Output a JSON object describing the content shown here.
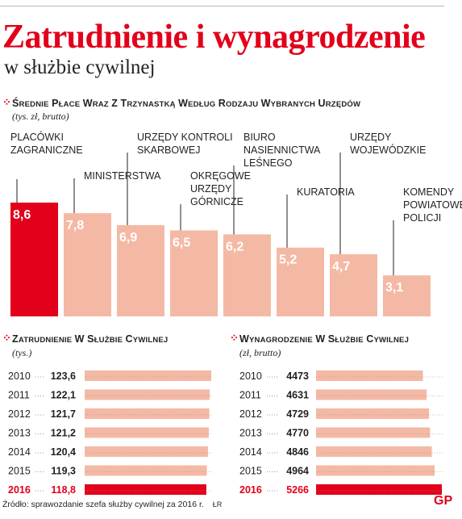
{
  "title": "Zatrudnienie i wynagrodzenie",
  "subtitle": "w służbie cywilnej",
  "colors": {
    "accent": "#e2001a",
    "bar": "#f4b9a4",
    "dots": "#999999"
  },
  "source": "Źródło: sprawozdanie szefa służby cywilnej za 2016 r.",
  "author_initials": "ŁR",
  "logo": "GP",
  "chart_data": [
    {
      "type": "bar",
      "title": "Średnie płace wraz z trzynastką według rodzaju wybranych urzędów",
      "subtitle": "(tys. zł, brutto)",
      "categories": [
        [
          "PLACÓWKI",
          "ZAGRANICZNE"
        ],
        [
          "MINISTERSTWA"
        ],
        [
          "URZĘDY KONTROLI",
          "SKARBOWEJ"
        ],
        [
          "OKRĘGOWE",
          "URZĘDY",
          "GÓRNICZE"
        ],
        [
          "BIURO",
          "NASIENNICTWA",
          "LEŚNEGO"
        ],
        [
          "KURATORIA"
        ],
        [
          "URZĘDY",
          "WOJEWÓDZKIE"
        ],
        [
          "KOMENDY",
          "POWIATOWE",
          "POLICJI"
        ]
      ],
      "values": [
        8.6,
        7.8,
        6.9,
        6.5,
        6.2,
        5.2,
        4.7,
        3.1
      ],
      "value_labels": [
        "8,6",
        "7,8",
        "6,9",
        "6,5",
        "6,2",
        "5,2",
        "4,7",
        "3,1"
      ],
      "highlight_index": 0,
      "ylim": [
        0,
        8.6
      ]
    },
    {
      "type": "bar",
      "orientation": "horizontal",
      "title": "Zatrudnienie w służbie cywilnej",
      "subtitle": "(tys.)",
      "categories": [
        "2010",
        "2011",
        "2012",
        "2013",
        "2014",
        "2015",
        "2016"
      ],
      "values": [
        123.6,
        122.1,
        121.7,
        121.2,
        120.4,
        119.3,
        118.8
      ],
      "value_labels": [
        "123,6",
        "122,1",
        "121,7",
        "121,2",
        "120,4",
        "119,3",
        "118,8"
      ],
      "highlight_index": 6,
      "xlim": [
        0,
        123.6
      ]
    },
    {
      "type": "bar",
      "orientation": "horizontal",
      "title": "Wynagrodzenie w służbie cywilnej",
      "subtitle": "(zł, brutto)",
      "categories": [
        "2010",
        "2011",
        "2012",
        "2013",
        "2014",
        "2015",
        "2016"
      ],
      "values": [
        4473,
        4631,
        4729,
        4770,
        4846,
        4964,
        5266
      ],
      "value_labels": [
        "4473",
        "4631",
        "4729",
        "4770",
        "4846",
        "4964",
        "5266"
      ],
      "highlight_index": 6,
      "xlim": [
        0,
        5266
      ]
    }
  ]
}
